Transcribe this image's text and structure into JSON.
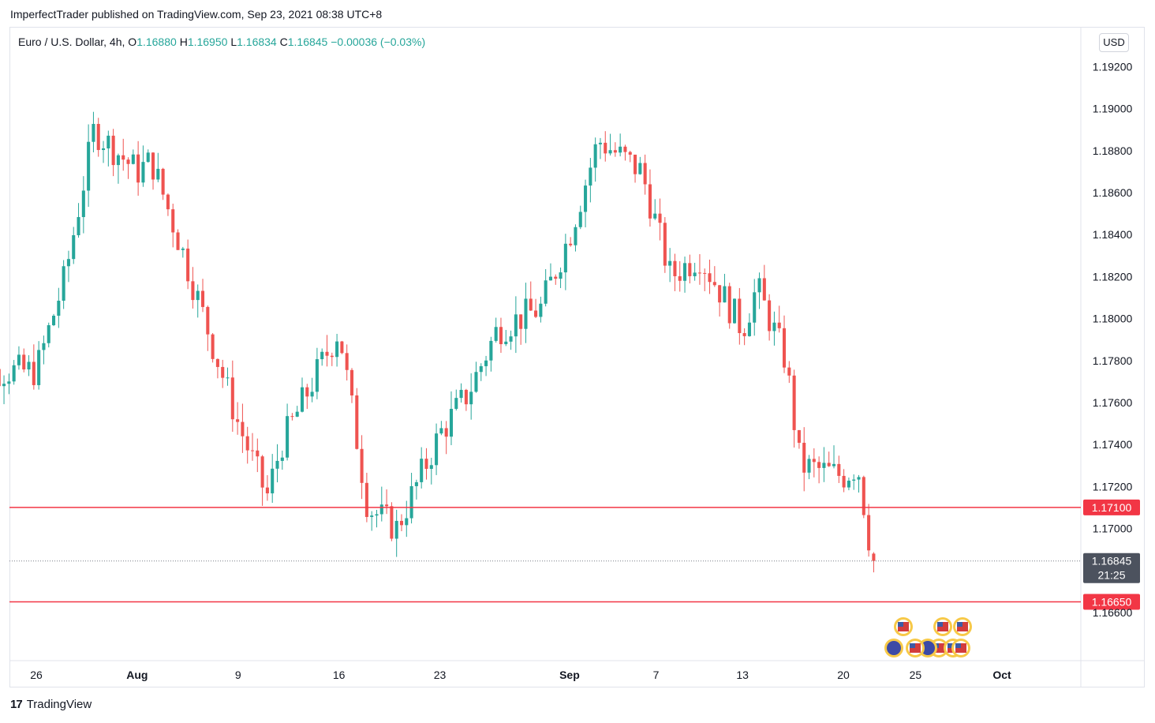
{
  "header": {
    "published": "ImperfectTrader published on TradingView.com, Sep 23, 2021 08:38 UTC+8"
  },
  "legend": {
    "symbol": "Euro / U.S. Dollar, 4h,",
    "o_label": "O",
    "o_value": "1.16880",
    "h_label": "H",
    "h_value": "1.16950",
    "l_label": "L",
    "l_value": "1.16834",
    "c_label": "C",
    "c_value": "1.16845",
    "change": "−0.00036 (−0.03%)"
  },
  "currency_button": "USD",
  "colors": {
    "up": "#26a69a",
    "down": "#ef5350",
    "line": "#f23645",
    "last": "#4c525e"
  },
  "chart_data": {
    "type": "candlestick",
    "title": "",
    "xlabel": "",
    "ylabel": "",
    "ylim": [
      1.1637,
      1.1939
    ],
    "y_ticks": [
      "1.19200",
      "1.19000",
      "1.18800",
      "1.18600",
      "1.18400",
      "1.18200",
      "1.18000",
      "1.17800",
      "1.17600",
      "1.17400",
      "1.17200",
      "1.17000",
      "1.16600"
    ],
    "x_ticks": [
      {
        "label": "26",
        "x": "2021-07-26"
      },
      {
        "label": "Aug",
        "x": "2021-08-02"
      },
      {
        "label": "9",
        "x": "2021-08-09"
      },
      {
        "label": "16",
        "x": "2021-08-16"
      },
      {
        "label": "23",
        "x": "2021-08-23"
      },
      {
        "label": "Sep",
        "x": "2021-09-01"
      },
      {
        "label": "7",
        "x": "2021-09-07"
      },
      {
        "label": "13",
        "x": "2021-09-13"
      },
      {
        "label": "20",
        "x": "2021-09-20"
      },
      {
        "label": "25",
        "x": "2021-09-25"
      },
      {
        "label": "Oct",
        "x": "2021-10-01"
      }
    ],
    "horizontal_lines": [
      {
        "value": 1.171,
        "label": "1.17100"
      },
      {
        "value": 1.1665,
        "label": "1.16650"
      }
    ],
    "last_price": {
      "value": 1.16845,
      "label": "1.16845",
      "countdown": "21:25"
    },
    "key_points": [
      {
        "x": "2021-07-21",
        "close": 1.1775
      },
      {
        "x": "2021-07-26",
        "close": 1.1775
      },
      {
        "x": "2021-07-28",
        "close": 1.182
      },
      {
        "x": "2021-07-30",
        "close": 1.189
      },
      {
        "x": "2021-08-02",
        "close": 1.187
      },
      {
        "x": "2021-08-03",
        "close": 1.1875
      },
      {
        "x": "2021-08-05",
        "close": 1.1835
      },
      {
        "x": "2021-08-09",
        "close": 1.175
      },
      {
        "x": "2021-08-11",
        "close": 1.1715
      },
      {
        "x": "2021-08-12",
        "close": 1.174
      },
      {
        "x": "2021-08-16",
        "close": 1.1795
      },
      {
        "x": "2021-08-18",
        "close": 1.171
      },
      {
        "x": "2021-08-20",
        "close": 1.17
      },
      {
        "x": "2021-08-23",
        "close": 1.1745
      },
      {
        "x": "2021-08-25",
        "close": 1.1765
      },
      {
        "x": "2021-08-27",
        "close": 1.1795
      },
      {
        "x": "2021-08-30",
        "close": 1.1805
      },
      {
        "x": "2021-09-01",
        "close": 1.184
      },
      {
        "x": "2021-09-03",
        "close": 1.1885
      },
      {
        "x": "2021-09-06",
        "close": 1.187
      },
      {
        "x": "2021-09-08",
        "close": 1.182
      },
      {
        "x": "2021-09-10",
        "close": 1.183
      },
      {
        "x": "2021-09-13",
        "close": 1.1795
      },
      {
        "x": "2021-09-14",
        "close": 1.1815
      },
      {
        "x": "2021-09-16",
        "close": 1.178
      },
      {
        "x": "2021-09-17",
        "close": 1.173
      },
      {
        "x": "2021-09-20",
        "close": 1.1725
      },
      {
        "x": "2021-09-21",
        "close": 1.173
      },
      {
        "x": "2021-09-22",
        "close": 1.1685
      }
    ],
    "candle_count": 184
  },
  "footer": {
    "brand": "TradingView",
    "logo_mark": "17"
  }
}
